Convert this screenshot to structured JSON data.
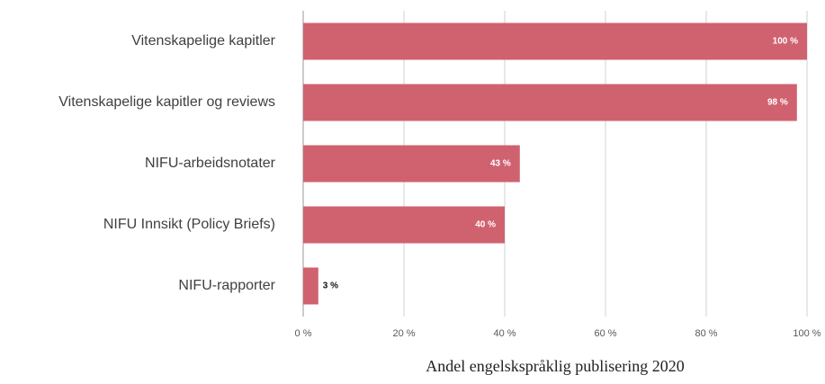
{
  "chart_data": {
    "type": "barh",
    "xlabel": "Andel engelskspråklig publisering 2020",
    "categories": [
      "Vitenskapelige kapitler",
      "Vitenskapelige kapitler og reviews",
      "NIFU-arbeidsnotater",
      "NIFU Innsikt (Policy Briefs)",
      "NIFU-rapporter"
    ],
    "values": [
      100,
      98,
      43,
      40,
      3
    ],
    "value_labels": [
      "100 %",
      "98 %",
      "43 %",
      "40 %",
      "3 %"
    ],
    "color": "#d06270",
    "xlim": [
      0,
      100
    ],
    "xticks": [
      {
        "value": 0,
        "label": "0 %"
      },
      {
        "value": 20,
        "label": "20 %"
      },
      {
        "value": 40,
        "label": "40 %"
      },
      {
        "value": 60,
        "label": "60 %"
      },
      {
        "value": 80,
        "label": "80 %"
      },
      {
        "value": 100,
        "label": "100 %"
      }
    ],
    "grid": true
  }
}
